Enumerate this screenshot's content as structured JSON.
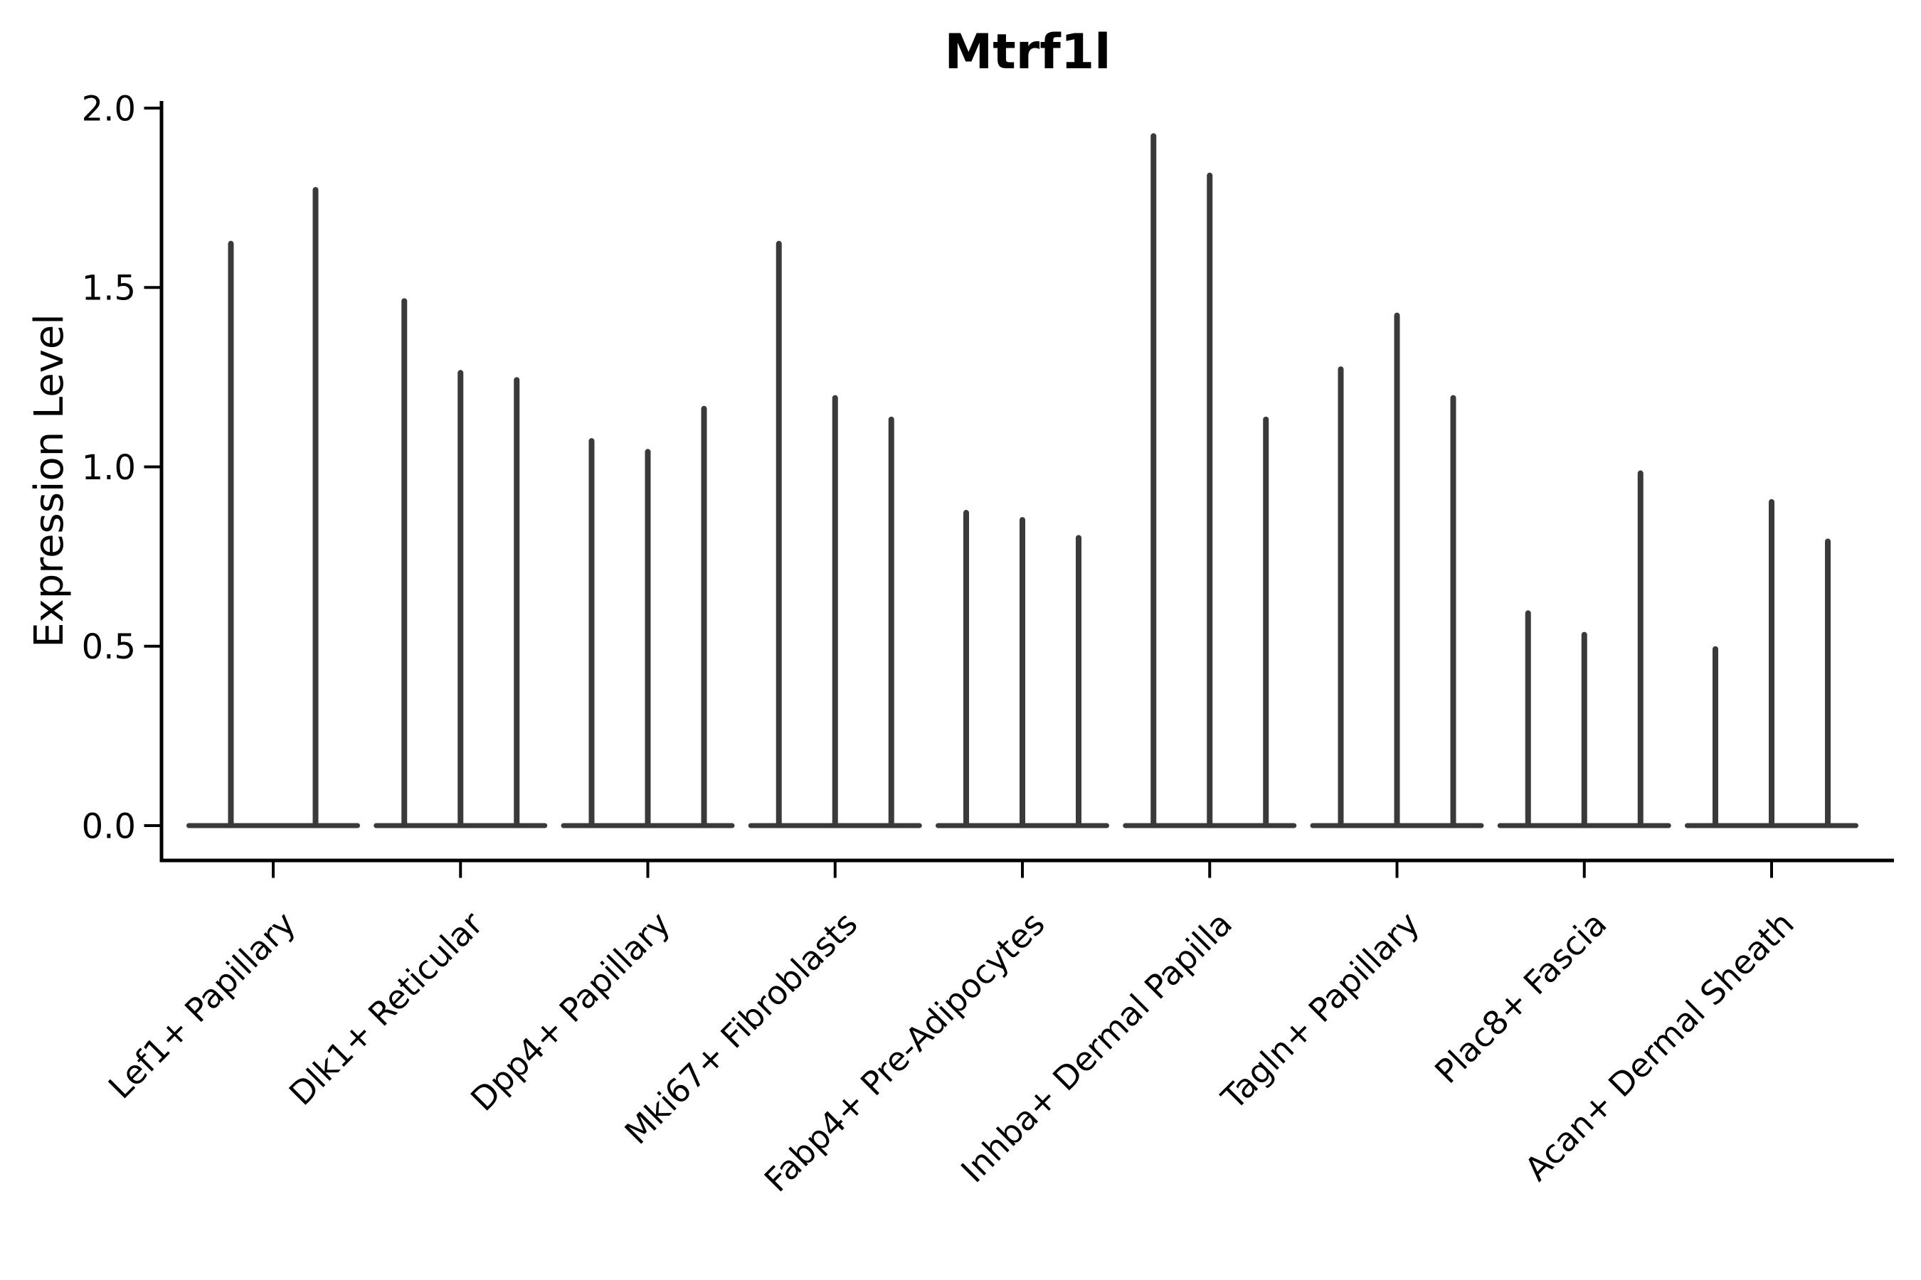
{
  "figure": {
    "background": "#ffffff"
  },
  "chart_data": {
    "type": "violin",
    "title": "Mtrf1l",
    "ylabel": "Expression Level",
    "xlabel": "",
    "ylim": [
      0.0,
      2.0
    ],
    "yticks": [
      "0.0",
      "0.5",
      "1.0",
      "1.5",
      "2.0"
    ],
    "grid": false,
    "legend": false,
    "axis_color": "#000000",
    "violin_color": "#3a3a3a",
    "description": "Needle-shaped violins: wide flat density mass at expression 0 with a thin spike rising to the maximum expression value of each violin; 2 violins in the first group, 3 violins in every other group.",
    "groups": [
      {
        "label": "Lef1+ Papillary",
        "violin_max_expression": [
          1.63,
          1.78
        ]
      },
      {
        "label": "Dlk1+ Reticular",
        "violin_max_expression": [
          1.47,
          1.27,
          1.25
        ]
      },
      {
        "label": "Dpp4+ Papillary",
        "violin_max_expression": [
          1.08,
          1.05,
          1.17
        ]
      },
      {
        "label": "Mki67+ Fibroblasts",
        "violin_max_expression": [
          1.63,
          1.2,
          1.14
        ]
      },
      {
        "label": "Fabp4+ Pre-Adipocytes",
        "violin_max_expression": [
          0.88,
          0.86,
          0.81
        ]
      },
      {
        "label": "Inhba+ Dermal Papilla",
        "violin_max_expression": [
          1.93,
          1.82,
          1.14
        ]
      },
      {
        "label": "Tagln+ Papillary",
        "violin_max_expression": [
          1.28,
          1.43,
          1.2
        ]
      },
      {
        "label": "Plac8+ Fascia",
        "violin_max_expression": [
          0.6,
          0.54,
          0.99
        ]
      },
      {
        "label": "Acan+ Dermal Sheath",
        "violin_max_expression": [
          0.5,
          0.91,
          0.8
        ]
      }
    ]
  }
}
